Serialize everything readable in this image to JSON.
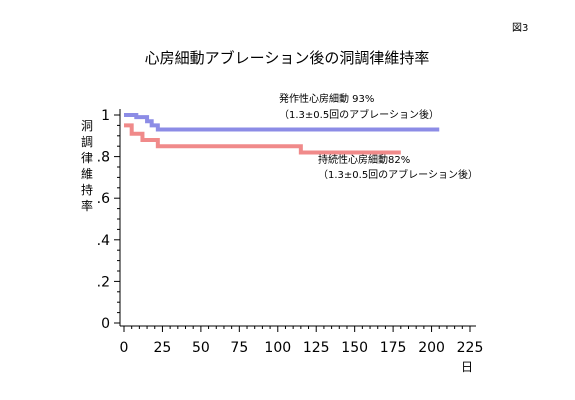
{
  "figure_label": "図3",
  "chart_data": {
    "type": "line",
    "title": "心房細動アブレーション後の洞調律維持率",
    "ylabel": "洞調律維持率",
    "xlabel": "日",
    "xlim": [
      0,
      225
    ],
    "ylim": [
      0,
      1
    ],
    "x_ticks": [
      0,
      25,
      50,
      75,
      100,
      125,
      150,
      175,
      200,
      225
    ],
    "x_tick_labels": [
      "0",
      "25",
      "50",
      "75",
      "100",
      "125",
      "150",
      "175",
      "200",
      "225"
    ],
    "y_ticks": [
      0,
      0.2,
      0.4,
      0.6,
      0.8,
      1
    ],
    "y_tick_labels": [
      "0",
      ".2",
      ".4",
      ".6",
      ".8",
      "1"
    ],
    "grid": false,
    "series": [
      {
        "name": "発作性心房細動 93%",
        "annotation": "（1.3±0.5回のアブレーション後）",
        "color": "#8c8ce6",
        "step": true,
        "x": [
          0,
          8,
          15,
          18,
          22,
          205
        ],
        "y": [
          1.0,
          0.99,
          0.97,
          0.95,
          0.93,
          0.93
        ]
      },
      {
        "name": "持続性心房細動82%",
        "annotation": "（1.3±0.5回のアブレーション後）",
        "color": "#f08a8a",
        "step": true,
        "x": [
          0,
          5,
          12,
          22,
          115,
          180
        ],
        "y": [
          0.95,
          0.91,
          0.88,
          0.85,
          0.82,
          0.82
        ]
      }
    ]
  }
}
